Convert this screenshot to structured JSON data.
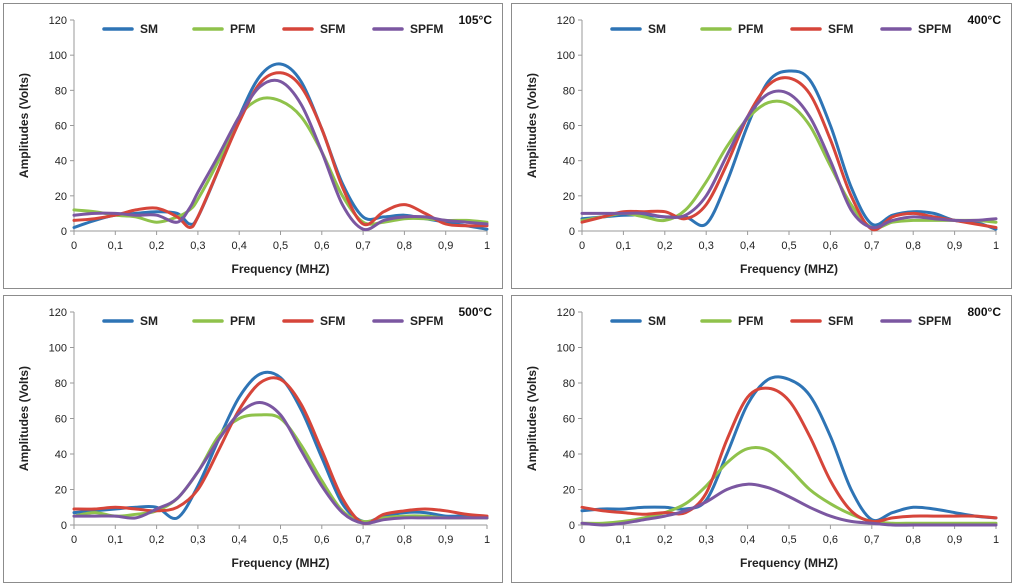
{
  "chart_data": [
    {
      "type": "line",
      "annotation": "105°C",
      "xlabel": "Frequency  (MHZ)",
      "ylabel": "Amplitudes (Volts)",
      "xlim": [
        0,
        1
      ],
      "ylim": [
        0,
        120
      ],
      "x_ticks": [
        "0",
        "0,1",
        "0,2",
        "0,3",
        "0,4",
        "0,5",
        "0,6",
        "0,7",
        "0,8",
        "0,9",
        "1"
      ],
      "y_ticks": [
        "0",
        "20",
        "40",
        "60",
        "80",
        "100",
        "120"
      ],
      "legend_position": "top",
      "series": [
        {
          "name": "SM",
          "color": "#2e74b5",
          "x": [
            0,
            0.05,
            0.1,
            0.15,
            0.2,
            0.25,
            0.28,
            0.3,
            0.35,
            0.4,
            0.45,
            0.5,
            0.55,
            0.6,
            0.65,
            0.7,
            0.75,
            0.8,
            0.85,
            0.9,
            0.95,
            1
          ],
          "y": [
            2,
            6,
            9,
            10,
            11,
            10,
            4,
            8,
            35,
            65,
            88,
            95,
            85,
            58,
            27,
            8,
            8,
            9,
            7,
            5,
            3,
            1
          ]
        },
        {
          "name": "PFM",
          "color": "#8fc24b",
          "x": [
            0,
            0.05,
            0.1,
            0.15,
            0.2,
            0.25,
            0.28,
            0.3,
            0.35,
            0.4,
            0.45,
            0.5,
            0.55,
            0.6,
            0.65,
            0.7,
            0.75,
            0.8,
            0.85,
            0.9,
            0.95,
            1
          ],
          "y": [
            12,
            11,
            9,
            8,
            5,
            8,
            12,
            18,
            40,
            65,
            75,
            74,
            65,
            45,
            20,
            5,
            5,
            7,
            7,
            6,
            6,
            5
          ]
        },
        {
          "name": "SFM",
          "color": "#d6453a",
          "x": [
            0,
            0.05,
            0.1,
            0.15,
            0.2,
            0.25,
            0.28,
            0.3,
            0.35,
            0.4,
            0.45,
            0.5,
            0.55,
            0.6,
            0.65,
            0.7,
            0.75,
            0.8,
            0.85,
            0.9,
            0.95,
            1
          ],
          "y": [
            6,
            7,
            9,
            12,
            13,
            8,
            2,
            8,
            35,
            62,
            84,
            90,
            82,
            58,
            25,
            4,
            11,
            15,
            10,
            4,
            3,
            3
          ]
        },
        {
          "name": "SPFM",
          "color": "#7b57a1",
          "x": [
            0,
            0.05,
            0.1,
            0.15,
            0.2,
            0.25,
            0.28,
            0.3,
            0.35,
            0.4,
            0.45,
            0.5,
            0.55,
            0.6,
            0.65,
            0.7,
            0.75,
            0.8,
            0.85,
            0.9,
            0.95,
            1
          ],
          "y": [
            9,
            10,
            10,
            9,
            9,
            5,
            13,
            22,
            43,
            65,
            82,
            85,
            72,
            45,
            15,
            1,
            6,
            8,
            8,
            6,
            5,
            4
          ]
        }
      ]
    },
    {
      "type": "line",
      "annotation": "400°C",
      "xlabel": "Frequency  (MHZ)",
      "ylabel": "Amplitudes (Volts)",
      "xlim": [
        0,
        1
      ],
      "ylim": [
        0,
        120
      ],
      "x_ticks": [
        "0",
        "0,1",
        "0,2",
        "0,3",
        "0,4",
        "0,5",
        "0,6",
        "0,7",
        "0,8",
        "0,9",
        "1"
      ],
      "y_ticks": [
        "0",
        "20",
        "40",
        "60",
        "80",
        "100",
        "120"
      ],
      "legend_position": "top",
      "series": [
        {
          "name": "SM",
          "color": "#2e74b5",
          "x": [
            0,
            0.05,
            0.1,
            0.15,
            0.2,
            0.25,
            0.3,
            0.35,
            0.4,
            0.45,
            0.5,
            0.55,
            0.6,
            0.65,
            0.7,
            0.75,
            0.8,
            0.85,
            0.9,
            0.95,
            1
          ],
          "y": [
            7,
            8,
            9,
            9,
            8,
            8,
            4,
            28,
            60,
            85,
            91,
            86,
            60,
            25,
            4,
            9,
            11,
            10,
            6,
            5,
            1
          ]
        },
        {
          "name": "PFM",
          "color": "#8fc24b",
          "x": [
            0,
            0.05,
            0.1,
            0.15,
            0.2,
            0.25,
            0.3,
            0.35,
            0.4,
            0.45,
            0.5,
            0.55,
            0.6,
            0.65,
            0.7,
            0.75,
            0.8,
            0.85,
            0.9,
            0.95,
            1
          ],
          "y": [
            6,
            8,
            10,
            8,
            6,
            12,
            28,
            48,
            64,
            73,
            72,
            60,
            37,
            15,
            2,
            5,
            6,
            6,
            6,
            6,
            5
          ]
        },
        {
          "name": "SFM",
          "color": "#d6453a",
          "x": [
            0,
            0.05,
            0.1,
            0.15,
            0.2,
            0.25,
            0.3,
            0.35,
            0.4,
            0.45,
            0.5,
            0.55,
            0.6,
            0.65,
            0.7,
            0.75,
            0.8,
            0.85,
            0.9,
            0.95,
            1
          ],
          "y": [
            5,
            8,
            11,
            11,
            11,
            7,
            15,
            38,
            65,
            83,
            87,
            78,
            52,
            20,
            1,
            8,
            10,
            8,
            6,
            4,
            2
          ]
        },
        {
          "name": "SPFM",
          "color": "#7b57a1",
          "x": [
            0,
            0.05,
            0.1,
            0.15,
            0.2,
            0.25,
            0.3,
            0.35,
            0.4,
            0.45,
            0.5,
            0.55,
            0.6,
            0.65,
            0.7,
            0.75,
            0.8,
            0.85,
            0.9,
            0.95,
            1
          ],
          "y": [
            10,
            10,
            10,
            10,
            8,
            9,
            20,
            43,
            65,
            78,
            78,
            65,
            40,
            12,
            2,
            6,
            8,
            7,
            6,
            6,
            7
          ]
        }
      ]
    },
    {
      "type": "line",
      "annotation": "500°C",
      "xlabel": "Frequency  (MHZ)",
      "ylabel": "Amplitudes (Volts)",
      "xlim": [
        0,
        1
      ],
      "ylim": [
        0,
        120
      ],
      "x_ticks": [
        "0",
        "0,1",
        "0,2",
        "0,3",
        "0,4",
        "0,5",
        "0,6",
        "0,7",
        "0,8",
        "0,9",
        "1"
      ],
      "y_ticks": [
        "0",
        "20",
        "40",
        "60",
        "80",
        "100",
        "120"
      ],
      "legend_position": "top",
      "series": [
        {
          "name": "SM",
          "color": "#2e74b5",
          "x": [
            0,
            0.05,
            0.1,
            0.15,
            0.2,
            0.25,
            0.3,
            0.35,
            0.4,
            0.45,
            0.5,
            0.55,
            0.6,
            0.65,
            0.7,
            0.75,
            0.8,
            0.85,
            0.9,
            0.95,
            1
          ],
          "y": [
            7,
            8,
            9,
            10,
            10,
            4,
            22,
            48,
            72,
            85,
            83,
            65,
            38,
            12,
            2,
            5,
            7,
            7,
            5,
            5,
            4
          ]
        },
        {
          "name": "PFM",
          "color": "#8fc24b",
          "x": [
            0,
            0.05,
            0.1,
            0.15,
            0.2,
            0.25,
            0.3,
            0.35,
            0.4,
            0.45,
            0.5,
            0.55,
            0.6,
            0.65,
            0.7,
            0.75,
            0.8,
            0.85,
            0.9,
            0.95,
            1
          ],
          "y": [
            5,
            7,
            5,
            6,
            8,
            15,
            30,
            50,
            60,
            62,
            60,
            45,
            25,
            8,
            2,
            4,
            5,
            5,
            4,
            4,
            4
          ]
        },
        {
          "name": "SFM",
          "color": "#d6453a",
          "x": [
            0,
            0.05,
            0.1,
            0.15,
            0.2,
            0.25,
            0.3,
            0.35,
            0.4,
            0.45,
            0.5,
            0.55,
            0.6,
            0.65,
            0.7,
            0.75,
            0.8,
            0.85,
            0.9,
            0.95,
            1
          ],
          "y": [
            9,
            9,
            10,
            9,
            8,
            10,
            20,
            42,
            65,
            80,
            82,
            68,
            42,
            15,
            1,
            6,
            8,
            9,
            8,
            6,
            5
          ]
        },
        {
          "name": "SPFM",
          "color": "#7b57a1",
          "x": [
            0,
            0.05,
            0.1,
            0.15,
            0.2,
            0.25,
            0.3,
            0.35,
            0.4,
            0.45,
            0.5,
            0.55,
            0.6,
            0.65,
            0.7,
            0.75,
            0.8,
            0.85,
            0.9,
            0.95,
            1
          ],
          "y": [
            5,
            5,
            5,
            4,
            9,
            15,
            30,
            48,
            63,
            69,
            62,
            42,
            22,
            7,
            1,
            3,
            4,
            4,
            4,
            4,
            4
          ]
        }
      ]
    },
    {
      "type": "line",
      "annotation": "800°C",
      "xlabel": "Frequency  (MHZ)",
      "ylabel": "Amplitudes (Volts)",
      "xlim": [
        0,
        1
      ],
      "ylim": [
        0,
        120
      ],
      "x_ticks": [
        "0",
        "0,1",
        "0,2",
        "0,3",
        "0,4",
        "0,5",
        "0,6",
        "0,7",
        "0,8",
        "0,9",
        "1"
      ],
      "y_ticks": [
        "0",
        "20",
        "40",
        "60",
        "80",
        "100",
        "120"
      ],
      "legend_position": "top",
      "series": [
        {
          "name": "SM",
          "color": "#2e74b5",
          "x": [
            0,
            0.05,
            0.1,
            0.15,
            0.2,
            0.25,
            0.3,
            0.35,
            0.4,
            0.45,
            0.5,
            0.55,
            0.6,
            0.65,
            0.7,
            0.75,
            0.8,
            0.85,
            0.9,
            0.95,
            1
          ],
          "y": [
            8,
            9,
            9,
            10,
            10,
            9,
            14,
            40,
            68,
            82,
            82,
            73,
            50,
            20,
            3,
            7,
            10,
            9,
            7,
            5,
            4
          ]
        },
        {
          "name": "PFM",
          "color": "#8fc24b",
          "x": [
            0,
            0.05,
            0.1,
            0.15,
            0.2,
            0.25,
            0.3,
            0.35,
            0.4,
            0.45,
            0.5,
            0.55,
            0.6,
            0.65,
            0.7,
            0.75,
            0.8,
            0.85,
            0.9,
            0.95,
            1
          ],
          "y": [
            1,
            1,
            2,
            4,
            7,
            12,
            22,
            35,
            43,
            42,
            32,
            20,
            12,
            6,
            2,
            1,
            1,
            1,
            1,
            1,
            1
          ]
        },
        {
          "name": "SFM",
          "color": "#d6453a",
          "x": [
            0,
            0.05,
            0.1,
            0.15,
            0.2,
            0.25,
            0.3,
            0.35,
            0.4,
            0.45,
            0.5,
            0.55,
            0.6,
            0.65,
            0.7,
            0.75,
            0.8,
            0.85,
            0.9,
            0.95,
            1
          ],
          "y": [
            10,
            8,
            7,
            6,
            7,
            7,
            18,
            48,
            72,
            77,
            70,
            50,
            25,
            8,
            2,
            4,
            5,
            5,
            5,
            5,
            4
          ]
        },
        {
          "name": "SPFM",
          "color": "#7b57a1",
          "x": [
            0,
            0.05,
            0.1,
            0.15,
            0.2,
            0.25,
            0.3,
            0.35,
            0.4,
            0.45,
            0.5,
            0.55,
            0.6,
            0.65,
            0.7,
            0.75,
            0.8,
            0.85,
            0.9,
            0.95,
            1
          ],
          "y": [
            1,
            0,
            1,
            3,
            5,
            8,
            13,
            20,
            23,
            21,
            16,
            10,
            5,
            2,
            1,
            0,
            0,
            0,
            0,
            0,
            0
          ]
        }
      ]
    }
  ]
}
